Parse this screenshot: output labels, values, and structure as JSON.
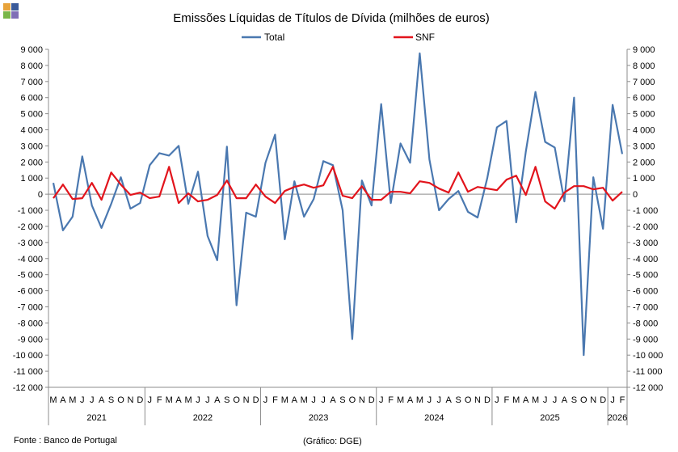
{
  "colors": {
    "total": "#4a78b0",
    "snf": "#e2141c",
    "axis": "#8c8c8c",
    "logo": [
      "#e8a33a",
      "#3b5b9a",
      "#7ab648",
      "#7f6fb6"
    ]
  },
  "footer": {
    "source": "Fonte : Banco de Portugal",
    "credit": "(Gráfico: DGE)"
  },
  "chart_data": {
    "type": "line",
    "title": "Emissões Líquidas de Títulos de Dívida (milhões de euros)",
    "legend_position": "top-center",
    "ylim": [
      -12000,
      9000
    ],
    "ytick_step": 1000,
    "ytick_labels": [
      "9 000",
      "8 000",
      "7 000",
      "6 000",
      "5 000",
      "4 000",
      "3 000",
      "2 000",
      "1 000",
      "0",
      "-1 000",
      "-2 000",
      "-3 000",
      "-4 000",
      "-5 000",
      "-6 000",
      "-7 000",
      "-8 000",
      "-9 000",
      "-10 000",
      "-11 000",
      "-12 000"
    ],
    "secondary_y_axis": true,
    "grid": false,
    "x": [
      "M",
      "A",
      "M",
      "J",
      "J",
      "A",
      "S",
      "O",
      "N",
      "D",
      "J",
      "F",
      "M",
      "A",
      "M",
      "J",
      "J",
      "A",
      "S",
      "O",
      "N",
      "D",
      "J",
      "F",
      "M",
      "A",
      "M",
      "J",
      "J",
      "A",
      "S",
      "O",
      "N",
      "D",
      "J",
      "F",
      "M",
      "A",
      "M",
      "J",
      "J",
      "A",
      "S",
      "O",
      "N",
      "D",
      "J",
      "F",
      "M",
      "A",
      "M",
      "J",
      "J",
      "A",
      "S",
      "O",
      "N",
      "D",
      "J",
      "F"
    ],
    "years": [
      {
        "label": "2021",
        "months": 10
      },
      {
        "label": "2022",
        "months": 12
      },
      {
        "label": "2023",
        "months": 12
      },
      {
        "label": "2024",
        "months": 12
      },
      {
        "label": "2025",
        "months": 12
      },
      {
        "label": "2026",
        "months": 2
      }
    ],
    "series": [
      {
        "name": "Total",
        "values": [
          700,
          -2250,
          -1400,
          2350,
          -700,
          -2100,
          -600,
          1050,
          -900,
          -550,
          1800,
          2550,
          2400,
          3000,
          -600,
          1400,
          -2600,
          -4100,
          2950,
          -6900,
          -1150,
          -1400,
          1950,
          3700,
          -2800,
          800,
          -1400,
          -300,
          2050,
          1800,
          -1000,
          -9000,
          850,
          -700,
          5600,
          -550,
          3150,
          1950,
          8750,
          2150,
          -1000,
          -300,
          200,
          -1100,
          -1450,
          1000,
          4150,
          4550,
          -1750,
          2650,
          6350,
          3250,
          2900,
          -450,
          6000,
          -10000,
          1050,
          -2150,
          5550,
          2500
        ]
      },
      {
        "name": "SNF",
        "values": [
          -250,
          600,
          -300,
          -250,
          700,
          -350,
          1350,
          600,
          -50,
          100,
          -250,
          -150,
          1700,
          -550,
          50,
          -450,
          -350,
          -50,
          850,
          -250,
          -250,
          600,
          -150,
          -550,
          200,
          450,
          600,
          400,
          550,
          1700,
          -100,
          -250,
          500,
          -350,
          -350,
          150,
          150,
          50,
          800,
          700,
          350,
          100,
          1350,
          150,
          450,
          350,
          250,
          900,
          1150,
          -50,
          1700,
          -450,
          -900,
          100,
          500,
          500,
          300,
          400,
          -400,
          150
        ]
      }
    ]
  }
}
